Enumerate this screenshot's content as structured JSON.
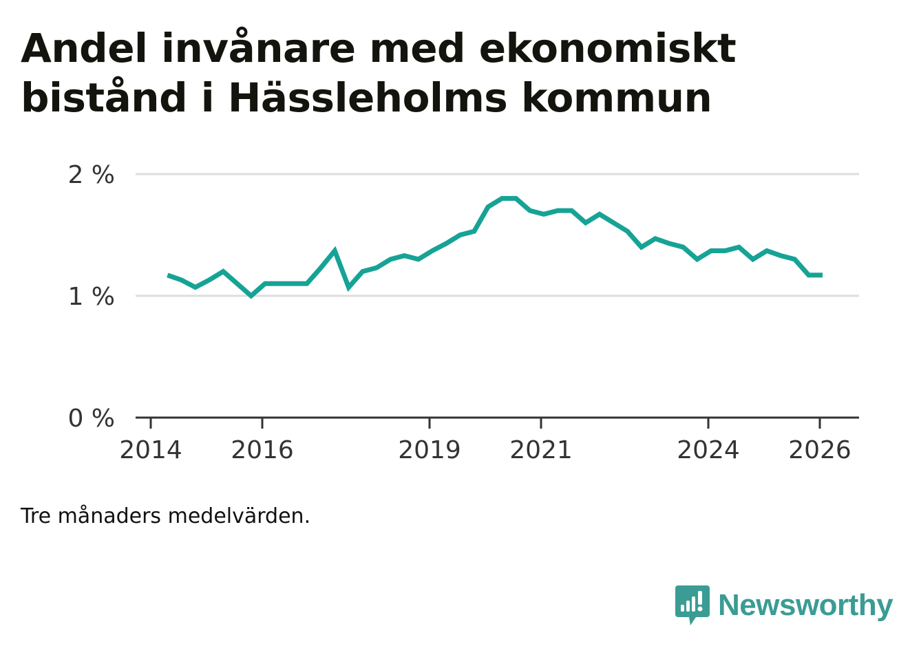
{
  "title": "Andel invånare med ekonomiskt bistånd i Hässleholms kommun",
  "note": "Tre månaders medelvärden.",
  "brand": {
    "name": "Newsworthy",
    "color": "#3a9c94",
    "icon": "newsworthy-chart-bubble-icon"
  },
  "colors": {
    "line": "#16a396",
    "grid": "#dddddd",
    "axis": "#333333"
  },
  "chart_data": {
    "type": "line",
    "title": "Andel invånare med ekonomiskt bistånd i Hässleholms kommun",
    "xlabel": "",
    "ylabel": "",
    "ylim": [
      0,
      2
    ],
    "xlim": [
      2014.0,
      2026.7
    ],
    "grid": true,
    "y_ticks": [
      {
        "value": 0,
        "label": "0 %"
      },
      {
        "value": 1,
        "label": "1 %"
      },
      {
        "value": 2,
        "label": "2 %"
      }
    ],
    "x_ticks": [
      {
        "value": 2014,
        "label": "2014"
      },
      {
        "value": 2016,
        "label": "2016"
      },
      {
        "value": 2019,
        "label": "2019"
      },
      {
        "value": 2021,
        "label": "2021"
      },
      {
        "value": 2024,
        "label": "2024"
      },
      {
        "value": 2026,
        "label": "2026"
      }
    ],
    "series": [
      {
        "name": "Andel invånare med ekonomiskt bistånd",
        "x": [
          2014.3,
          2014.55,
          2014.8,
          2015.05,
          2015.3,
          2015.55,
          2015.8,
          2016.05,
          2016.3,
          2016.55,
          2016.8,
          2017.05,
          2017.3,
          2017.55,
          2017.8,
          2018.05,
          2018.3,
          2018.55,
          2018.8,
          2019.05,
          2019.3,
          2019.55,
          2019.8,
          2020.05,
          2020.3,
          2020.55,
          2020.8,
          2021.05,
          2021.3,
          2021.55,
          2021.8,
          2022.05,
          2022.3,
          2022.55,
          2022.8,
          2023.05,
          2023.3,
          2023.55,
          2023.8,
          2024.05,
          2024.3,
          2024.55,
          2024.8,
          2025.05,
          2025.3,
          2025.55,
          2025.8,
          2026.05
        ],
        "values": [
          1.17,
          1.13,
          1.07,
          1.13,
          1.2,
          1.1,
          1.0,
          1.1,
          1.1,
          1.1,
          1.1,
          1.23,
          1.37,
          1.07,
          1.2,
          1.23,
          1.3,
          1.33,
          1.3,
          1.37,
          1.43,
          1.5,
          1.53,
          1.73,
          1.8,
          1.8,
          1.7,
          1.67,
          1.7,
          1.7,
          1.6,
          1.67,
          1.6,
          1.53,
          1.4,
          1.47,
          1.43,
          1.4,
          1.3,
          1.37,
          1.37,
          1.4,
          1.3,
          1.37,
          1.33,
          1.3,
          1.17,
          1.17
        ]
      }
    ]
  }
}
